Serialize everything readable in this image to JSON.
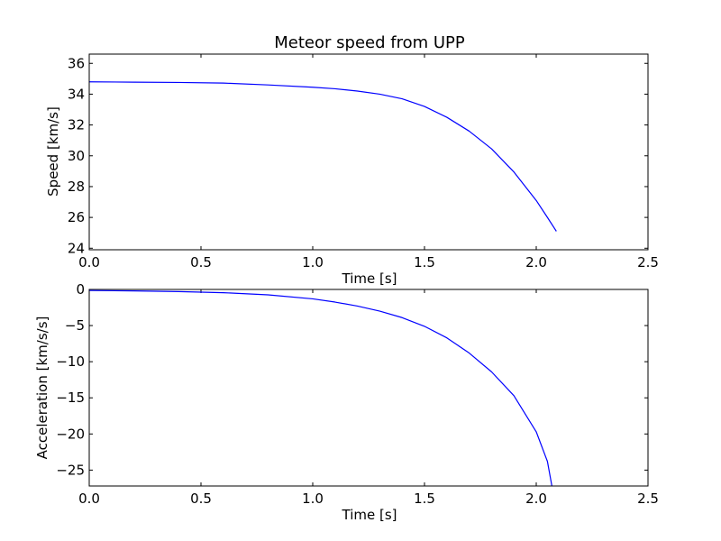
{
  "chart_data": [
    {
      "type": "line",
      "title": "Meteor speed from  UPP",
      "xlabel": "Time [s]",
      "ylabel": "Speed [km/s]",
      "xlim": [
        0,
        2.5
      ],
      "ylim": [
        23.9,
        36.6
      ],
      "xticks": [
        {
          "value": 0.0,
          "label": "0.0"
        },
        {
          "value": 0.5,
          "label": "0.5"
        },
        {
          "value": 1.0,
          "label": "1.0"
        },
        {
          "value": 1.5,
          "label": "1.5"
        },
        {
          "value": 2.0,
          "label": "2.0"
        },
        {
          "value": 2.5,
          "label": "2.5"
        }
      ],
      "yticks": [
        {
          "value": 24,
          "label": "24"
        },
        {
          "value": 26,
          "label": "26"
        },
        {
          "value": 28,
          "label": "28"
        },
        {
          "value": 30,
          "label": "30"
        },
        {
          "value": 32,
          "label": "32"
        },
        {
          "value": 34,
          "label": "34"
        },
        {
          "value": 36,
          "label": "36"
        }
      ],
      "grid": false,
      "color": "#0000ff",
      "series": [
        {
          "x": [
            0.0,
            0.2,
            0.4,
            0.6,
            0.8,
            1.0,
            1.1,
            1.2,
            1.3,
            1.4,
            1.5,
            1.6,
            1.7,
            1.8,
            1.9,
            2.0,
            2.05,
            2.09
          ],
          "y": [
            34.8,
            34.78,
            34.76,
            34.72,
            34.6,
            34.45,
            34.35,
            34.2,
            34.0,
            33.7,
            33.2,
            32.5,
            31.6,
            30.45,
            28.95,
            27.1,
            26.0,
            25.1
          ]
        }
      ]
    },
    {
      "type": "line",
      "title": "",
      "xlabel": "Time [s]",
      "ylabel": "Acceleration [km/s/s]",
      "xlim": [
        0,
        2.5
      ],
      "ylim": [
        -27.2,
        0
      ],
      "xticks": [
        {
          "value": 0.0,
          "label": "0.0"
        },
        {
          "value": 0.5,
          "label": "0.5"
        },
        {
          "value": 1.0,
          "label": "1.0"
        },
        {
          "value": 1.5,
          "label": "1.5"
        },
        {
          "value": 2.0,
          "label": "2.0"
        },
        {
          "value": 2.5,
          "label": "2.5"
        }
      ],
      "yticks": [
        {
          "value": 0,
          "label": "0"
        },
        {
          "value": -5,
          "label": "−5"
        },
        {
          "value": -10,
          "label": "−10"
        },
        {
          "value": -15,
          "label": "−15"
        },
        {
          "value": -20,
          "label": "−20"
        },
        {
          "value": -25,
          "label": "−25"
        }
      ],
      "grid": false,
      "color": "#0000ff",
      "series": [
        {
          "x": [
            0.0,
            0.2,
            0.4,
            0.6,
            0.8,
            1.0,
            1.1,
            1.2,
            1.3,
            1.4,
            1.5,
            1.6,
            1.7,
            1.8,
            1.9,
            2.0,
            2.05,
            2.07
          ],
          "y": [
            -0.15,
            -0.2,
            -0.3,
            -0.45,
            -0.75,
            -1.3,
            -1.75,
            -2.3,
            -3.0,
            -3.9,
            -5.1,
            -6.7,
            -8.8,
            -11.4,
            -14.7,
            -19.7,
            -23.8,
            -27.2
          ]
        }
      ]
    }
  ]
}
